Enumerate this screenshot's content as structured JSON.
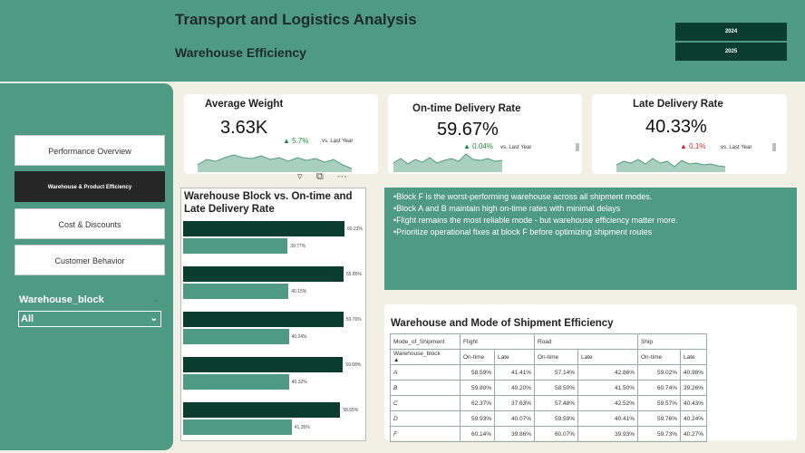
{
  "header": {
    "title": "Transport and Logistics Analysis",
    "subtitle": "Warehouse Efficiency",
    "years": [
      "2024",
      "2025"
    ]
  },
  "sidebar": {
    "nav": [
      "Performance Overview",
      "Warehouse & Product Efficiency",
      "Cost & Discounts",
      "Customer Behavior"
    ],
    "active_index": 1,
    "filter_label": "Warehouse_block",
    "filter_value": "All"
  },
  "kpis": [
    {
      "title": "Average Weight",
      "value": "3.63K",
      "delta": "5.7%",
      "direction": "up",
      "vs": "vs. Last Year",
      "delta_color": "#1e8a3a"
    },
    {
      "title": "On-time Delivery Rate",
      "value": "59.67%",
      "delta": "0.04%",
      "direction": "up",
      "vs": "vs. Last Year",
      "delta_color": "#1e8a3a"
    },
    {
      "title": "Late Delivery Rate",
      "value": "40.33%",
      "delta": "0.1%",
      "direction": "up",
      "vs": "vs. Last Year",
      "delta_color": "#d0262a"
    }
  ],
  "icons": {
    "filter": "filter-icon",
    "focus": "focus-mode-icon",
    "more": "more-options-icon"
  },
  "chart_data": {
    "type": "bar",
    "title": "Warehouse Block vs. On-time and Late Delivery Rate",
    "series": [
      {
        "values": [
          60.23,
          59.85,
          59.76,
          59.68,
          58.65
        ]
      },
      {
        "values": [
          39.77,
          40.15,
          40.24,
          40.32,
          41.35
        ]
      }
    ],
    "value_labels": [
      [
        "60.23%",
        "39.77%"
      ],
      [
        "59.85%",
        "40.15%"
      ],
      [
        "59.76%",
        "40.24%"
      ],
      [
        "59.68%",
        "40.32%"
      ],
      [
        "58.65%",
        "41.35%"
      ]
    ],
    "colors": [
      "#0b3d2e",
      "#4f9a82"
    ]
  },
  "insights": [
    "Block F is the worst-performing warehouse across all shipment modes.",
    "Block A and B maintain high on-time rates with minimal delays",
    "Flight remains the most reliable mode - but warehouse efficiency matter more.",
    "Prioritize operational fixes at block F before optimizing shipment routes"
  ],
  "table": {
    "title": "Warehouse and Mode of Shipment Efficiency",
    "corner_top": "Mode_of_Shipment",
    "corner_bottom": "Warehouse_block",
    "modes": [
      "Flight",
      "Road",
      "Ship"
    ],
    "subheaders": [
      "On-time",
      "Late"
    ],
    "rows": [
      {
        "block": "A",
        "values": [
          "58.59%",
          "41.41%",
          "57.14%",
          "42.86%",
          "59.02%",
          "40.98%"
        ]
      },
      {
        "block": "B",
        "values": [
          "59.80%",
          "40.20%",
          "58.50%",
          "41.50%",
          "60.74%",
          "39.26%"
        ]
      },
      {
        "block": "C",
        "values": [
          "62.37%",
          "37.63%",
          "57.48%",
          "42.52%",
          "59.57%",
          "40.43%"
        ]
      },
      {
        "block": "D",
        "values": [
          "59.93%",
          "40.07%",
          "59.59%",
          "40.41%",
          "59.76%",
          "40.24%"
        ]
      },
      {
        "block": "F",
        "values": [
          "60.14%",
          "39.86%",
          "60.07%",
          "39.93%",
          "59.73%",
          "40.27%"
        ]
      }
    ]
  }
}
